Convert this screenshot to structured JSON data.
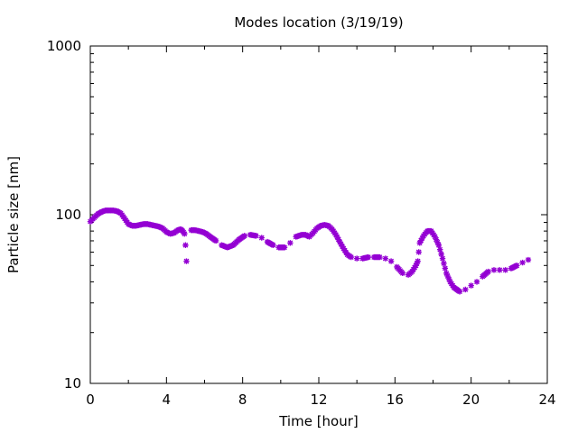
{
  "chart_data": {
    "type": "scatter",
    "title": "Modes location (3/19/19)",
    "xlabel": "Time [hour]",
    "ylabel": "Particle size [nm]",
    "xlim": [
      0,
      24
    ],
    "ylim": [
      10,
      1000
    ],
    "yscale": "log",
    "xticks": [
      0,
      4,
      8,
      12,
      16,
      20,
      24
    ],
    "yticks": [
      10,
      100,
      1000
    ],
    "xtick_labels": [
      "0",
      "4",
      "8",
      "12",
      "16",
      "20",
      "24"
    ],
    "ytick_labels": [
      "10",
      "100",
      "1000"
    ],
    "grid": false,
    "legend": "none",
    "marker_color": "#9400d3",
    "curve_points": [
      [
        0.0,
        91
      ],
      [
        0.2,
        96
      ],
      [
        0.4,
        101
      ],
      [
        0.6,
        104
      ],
      [
        0.8,
        106
      ],
      [
        1.0,
        106
      ],
      [
        1.2,
        106
      ],
      [
        1.4,
        105
      ],
      [
        1.6,
        102
      ],
      [
        1.8,
        95
      ],
      [
        2.0,
        88
      ],
      [
        2.2,
        86
      ],
      [
        2.4,
        86
      ],
      [
        2.6,
        87
      ],
      [
        2.8,
        88
      ],
      [
        3.0,
        88
      ],
      [
        3.2,
        87
      ],
      [
        3.4,
        86
      ],
      [
        3.6,
        85
      ],
      [
        3.8,
        83
      ],
      [
        4.0,
        79
      ],
      [
        4.2,
        77
      ],
      [
        4.4,
        78
      ],
      [
        4.6,
        81
      ],
      [
        4.75,
        82
      ],
      [
        4.85,
        80
      ],
      [
        4.95,
        77
      ],
      [
        5.3,
        81
      ],
      [
        5.5,
        81
      ],
      [
        5.7,
        80
      ],
      [
        5.9,
        79
      ],
      [
        6.1,
        77
      ],
      [
        6.3,
        74
      ],
      [
        6.6,
        70
      ],
      [
        6.9,
        66
      ],
      [
        7.2,
        64
      ],
      [
        7.5,
        66
      ],
      [
        7.8,
        71
      ],
      [
        8.1,
        75
      ],
      [
        8.4,
        76
      ],
      [
        8.7,
        75
      ],
      [
        9.0,
        73
      ],
      [
        9.3,
        69
      ],
      [
        9.6,
        66
      ],
      [
        9.9,
        64
      ],
      [
        10.2,
        64
      ],
      [
        10.5,
        68
      ],
      [
        10.8,
        74
      ],
      [
        11.1,
        76
      ],
      [
        11.3,
        76
      ],
      [
        11.5,
        74
      ],
      [
        11.7,
        78
      ],
      [
        11.9,
        83
      ],
      [
        12.1,
        86
      ],
      [
        12.3,
        87
      ],
      [
        12.5,
        86
      ],
      [
        12.7,
        82
      ],
      [
        12.9,
        76
      ],
      [
        13.1,
        69
      ],
      [
        13.3,
        63
      ],
      [
        13.5,
        58
      ],
      [
        13.7,
        56
      ],
      [
        14.0,
        55
      ],
      [
        14.3,
        55
      ],
      [
        14.6,
        56
      ],
      [
        14.9,
        56
      ],
      [
        15.2,
        56
      ],
      [
        15.5,
        55
      ],
      [
        15.8,
        53
      ],
      [
        16.1,
        49
      ],
      [
        16.4,
        45
      ],
      [
        16.7,
        44
      ],
      [
        16.9,
        46
      ],
      [
        17.1,
        50
      ],
      [
        17.2,
        53
      ],
      [
        17.3,
        68
      ],
      [
        17.5,
        75
      ],
      [
        17.7,
        80
      ],
      [
        17.9,
        80
      ],
      [
        18.1,
        74
      ],
      [
        18.3,
        66
      ],
      [
        18.5,
        55
      ],
      [
        18.7,
        45
      ],
      [
        18.9,
        40
      ],
      [
        19.1,
        37
      ],
      [
        19.4,
        35
      ],
      [
        19.7,
        36
      ],
      [
        20.0,
        38
      ],
      [
        20.3,
        40
      ],
      [
        20.6,
        43
      ],
      [
        20.9,
        46
      ],
      [
        21.2,
        47
      ],
      [
        21.5,
        47
      ],
      [
        21.8,
        47
      ],
      [
        22.1,
        48
      ],
      [
        22.4,
        50
      ],
      [
        22.7,
        52
      ],
      [
        23.0,
        54
      ]
    ],
    "isolated_points": [
      [
        5.0,
        66
      ],
      [
        5.05,
        53
      ]
    ]
  }
}
